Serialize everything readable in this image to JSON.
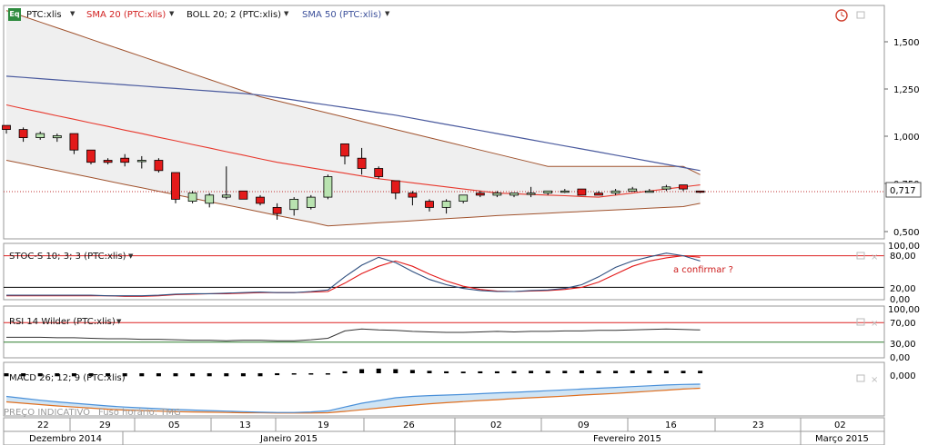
{
  "header": {
    "eq_badge": "Eq",
    "symbol_label": "PTC:xlis",
    "sma20_label": "SMA 20 (PTC:xlis)",
    "boll_label": "BOLL 20; 2 (PTC:xlis)",
    "sma50_label": "SMA 50 (PTC:xlis)"
  },
  "price_axis": {
    "ticks": [
      "1,500",
      "1,250",
      "1,000",
      "0,750",
      "0,500"
    ],
    "last_price": "0,717"
  },
  "stoch": {
    "label": "STOC-S 10; 3; 3 (PTC:xlis)",
    "ticks": [
      "100,00",
      "80,00",
      "20,00",
      "0,00"
    ],
    "annotation": "a confirmar ?"
  },
  "rsi": {
    "label": "RSI 14 Wilder (PTC:xlis)",
    "ticks": [
      "100,00",
      "70,00",
      "30,00",
      "0,00"
    ]
  },
  "macd": {
    "label": "MACD 26; 12; 9 (PTC:xlis)",
    "ticks": [
      "0,000"
    ]
  },
  "footer": {
    "indicative": "PREÇO INDICATIVO",
    "timezone": "Fuso horário: TMG"
  },
  "dates": {
    "days": [
      "22",
      "29",
      "05",
      "13",
      "19",
      "26",
      "02",
      "09",
      "16",
      "23",
      "02"
    ],
    "months": [
      "Dezembro 2014",
      "Janeiro 2015",
      "Fevereiro 2015",
      "Março 2015"
    ]
  },
  "colors": {
    "up": "#b9e3b0",
    "down": "#e31a1a",
    "sma20": "#e8382d",
    "sma50": "#4a5a9e",
    "boll": "#a0522d",
    "stoch_k": "#2f4f7f",
    "stoch_d": "#e31a1a",
    "rsi": "#333333",
    "macd_line": "#4a90d9",
    "macd_signal": "#e07020"
  },
  "chart_data": {
    "type": "candlestick",
    "y_range": [
      0.5,
      1.625
    ],
    "candles": [
      {
        "o": 1.04,
        "h": 1.04,
        "l": 1.0,
        "c": 1.02
      },
      {
        "o": 1.02,
        "h": 1.03,
        "l": 0.96,
        "c": 0.98
      },
      {
        "o": 0.98,
        "h": 1.01,
        "l": 0.97,
        "c": 1.0
      },
      {
        "o": 0.98,
        "h": 1.0,
        "l": 0.96,
        "c": 0.99
      },
      {
        "o": 1.0,
        "h": 1.0,
        "l": 0.9,
        "c": 0.92
      },
      {
        "o": 0.92,
        "h": 0.92,
        "l": 0.85,
        "c": 0.86
      },
      {
        "o": 0.87,
        "h": 0.88,
        "l": 0.85,
        "c": 0.86
      },
      {
        "o": 0.88,
        "h": 0.9,
        "l": 0.84,
        "c": 0.86
      },
      {
        "o": 0.87,
        "h": 0.89,
        "l": 0.83,
        "c": 0.87
      },
      {
        "o": 0.87,
        "h": 0.88,
        "l": 0.81,
        "c": 0.82
      },
      {
        "o": 0.81,
        "h": 0.81,
        "l": 0.66,
        "c": 0.68
      },
      {
        "o": 0.67,
        "h": 0.72,
        "l": 0.66,
        "c": 0.71
      },
      {
        "o": 0.66,
        "h": 0.71,
        "l": 0.64,
        "c": 0.7
      },
      {
        "o": 0.69,
        "h": 0.84,
        "l": 0.68,
        "c": 0.7
      },
      {
        "o": 0.72,
        "h": 0.72,
        "l": 0.69,
        "c": 0.68
      },
      {
        "o": 0.69,
        "h": 0.7,
        "l": 0.65,
        "c": 0.66
      },
      {
        "o": 0.64,
        "h": 0.66,
        "l": 0.58,
        "c": 0.61
      },
      {
        "o": 0.63,
        "h": 0.69,
        "l": 0.6,
        "c": 0.68
      },
      {
        "o": 0.64,
        "h": 0.7,
        "l": 0.63,
        "c": 0.69
      },
      {
        "o": 0.69,
        "h": 0.8,
        "l": 0.68,
        "c": 0.79
      },
      {
        "o": 0.95,
        "h": 0.95,
        "l": 0.85,
        "c": 0.89
      },
      {
        "o": 0.88,
        "h": 0.93,
        "l": 0.8,
        "c": 0.83
      },
      {
        "o": 0.83,
        "h": 0.84,
        "l": 0.78,
        "c": 0.79
      },
      {
        "o": 0.77,
        "h": 0.77,
        "l": 0.68,
        "c": 0.71
      },
      {
        "o": 0.71,
        "h": 0.72,
        "l": 0.65,
        "c": 0.69
      },
      {
        "o": 0.67,
        "h": 0.68,
        "l": 0.62,
        "c": 0.64
      },
      {
        "o": 0.64,
        "h": 0.68,
        "l": 0.61,
        "c": 0.67
      },
      {
        "o": 0.67,
        "h": 0.7,
        "l": 0.66,
        "c": 0.7
      },
      {
        "o": 0.71,
        "h": 0.72,
        "l": 0.69,
        "c": 0.7
      },
      {
        "o": 0.7,
        "h": 0.72,
        "l": 0.69,
        "c": 0.71
      },
      {
        "o": 0.7,
        "h": 0.71,
        "l": 0.69,
        "c": 0.71
      },
      {
        "o": 0.71,
        "h": 0.74,
        "l": 0.69,
        "c": 0.71
      },
      {
        "o": 0.71,
        "h": 0.72,
        "l": 0.7,
        "c": 0.72
      },
      {
        "o": 0.72,
        "h": 0.73,
        "l": 0.71,
        "c": 0.72
      },
      {
        "o": 0.73,
        "h": 0.73,
        "l": 0.7,
        "c": 0.7
      },
      {
        "o": 0.71,
        "h": 0.72,
        "l": 0.7,
        "c": 0.7
      },
      {
        "o": 0.71,
        "h": 0.73,
        "l": 0.7,
        "c": 0.72
      },
      {
        "o": 0.72,
        "h": 0.74,
        "l": 0.72,
        "c": 0.73
      },
      {
        "o": 0.72,
        "h": 0.73,
        "l": 0.72,
        "c": 0.72
      },
      {
        "o": 0.73,
        "h": 0.75,
        "l": 0.72,
        "c": 0.74
      },
      {
        "o": 0.75,
        "h": 0.75,
        "l": 0.72,
        "c": 0.73
      },
      {
        "o": 0.72,
        "h": 0.72,
        "l": 0.71,
        "c": 0.717
      }
    ],
    "sma20": [
      1.14,
      1.122,
      1.105,
      1.087,
      1.07,
      1.052,
      1.035,
      1.017,
      1.0,
      0.982,
      0.965,
      0.947,
      0.93,
      0.912,
      0.895,
      0.877,
      0.86,
      0.847,
      0.833,
      0.82,
      0.807,
      0.793,
      0.78,
      0.77,
      0.76,
      0.75,
      0.74,
      0.73,
      0.72,
      0.71,
      0.707,
      0.703,
      0.7,
      0.697,
      0.693,
      0.69,
      0.7,
      0.71,
      0.72,
      0.73,
      0.74,
      0.75
    ],
    "sma50": [
      1.28,
      1.274,
      1.268,
      1.262,
      1.256,
      1.25,
      1.244,
      1.238,
      1.232,
      1.226,
      1.22,
      1.214,
      1.208,
      1.202,
      1.196,
      1.188,
      1.176,
      1.164,
      1.151,
      1.139,
      1.127,
      1.115,
      1.102,
      1.09,
      1.075,
      1.06,
      1.045,
      1.03,
      1.015,
      1.0,
      0.985,
      0.97,
      0.955,
      0.94,
      0.925,
      0.91,
      0.895,
      0.88,
      0.865,
      0.85,
      0.835,
      0.82
    ],
    "boll_upper": [
      1.6,
      1.572,
      1.544,
      1.516,
      1.488,
      1.46,
      1.432,
      1.404,
      1.376,
      1.348,
      1.32,
      1.292,
      1.264,
      1.236,
      1.208,
      1.18,
      1.16,
      1.14,
      1.12,
      1.1,
      1.08,
      1.06,
      1.04,
      1.02,
      1.0,
      0.98,
      0.96,
      0.94,
      0.92,
      0.9,
      0.88,
      0.86,
      0.84,
      0.84,
      0.84,
      0.84,
      0.84,
      0.84,
      0.84,
      0.84,
      0.84,
      0.8
    ],
    "boll_lower": [
      0.87,
      0.853,
      0.836,
      0.82,
      0.803,
      0.786,
      0.769,
      0.752,
      0.736,
      0.719,
      0.702,
      0.685,
      0.668,
      0.652,
      0.635,
      0.618,
      0.601,
      0.584,
      0.568,
      0.55,
      0.555,
      0.56,
      0.565,
      0.57,
      0.575,
      0.58,
      0.585,
      0.59,
      0.595,
      0.6,
      0.604,
      0.608,
      0.612,
      0.616,
      0.62,
      0.624,
      0.628,
      0.632,
      0.636,
      0.64,
      0.644,
      0.66
    ],
    "stoch": {
      "k": [
        5,
        5,
        5,
        5,
        5,
        5,
        4,
        4,
        4,
        5,
        7,
        8,
        8,
        9,
        10,
        11,
        10,
        10,
        12,
        15,
        40,
        62,
        77,
        67,
        50,
        35,
        25,
        18,
        14,
        12,
        12,
        14,
        15,
        18,
        25,
        40,
        58,
        70,
        78,
        85,
        80,
        70
      ],
      "d": [
        4,
        4,
        4,
        4,
        4,
        4,
        4,
        3,
        3,
        4,
        6,
        7,
        8,
        8,
        9,
        10,
        10,
        10,
        11,
        12,
        28,
        46,
        60,
        70,
        60,
        45,
        32,
        22,
        16,
        13,
        12,
        13,
        14,
        16,
        20,
        30,
        45,
        60,
        70,
        76,
        80,
        77
      ]
    },
    "rsi": [
      40,
      40,
      40,
      39,
      39,
      38,
      37,
      37,
      36,
      36,
      35,
      34,
      34,
      33,
      34,
      34,
      33,
      33,
      35,
      38,
      53,
      57,
      55,
      54,
      52,
      51,
      50,
      50,
      51,
      52,
      51,
      52,
      52,
      53,
      53,
      54,
      54,
      55,
      56,
      57,
      56,
      55
    ],
    "macd": {
      "histogram": [
        -0.011,
        -0.011,
        -0.011,
        -0.011,
        -0.011,
        -0.011,
        -0.011,
        -0.011,
        -0.011,
        -0.011,
        -0.011,
        -0.011,
        -0.011,
        -0.011,
        -0.011,
        -0.011,
        -0.007,
        -0.005,
        -0.003,
        -0.001,
        0.007,
        0.015,
        0.017,
        0.015,
        0.012,
        0.009,
        0.007,
        0.006,
        0.007,
        0.007,
        0.008,
        0.009,
        0.009,
        0.009,
        0.01,
        0.009,
        0.009,
        0.01,
        0.01,
        0.009,
        0.009,
        0.009
      ],
      "line": [
        -0.085,
        -0.092,
        -0.099,
        -0.105,
        -0.11,
        -0.115,
        -0.12,
        -0.124,
        -0.127,
        -0.13,
        -0.133,
        -0.135,
        -0.137,
        -0.139,
        -0.141,
        -0.143,
        -0.144,
        -0.144,
        -0.142,
        -0.138,
        -0.124,
        -0.11,
        -0.1,
        -0.09,
        -0.085,
        -0.082,
        -0.08,
        -0.078,
        -0.075,
        -0.072,
        -0.07,
        -0.067,
        -0.064,
        -0.061,
        -0.058,
        -0.055,
        -0.052,
        -0.049,
        -0.046,
        -0.043,
        -0.041,
        -0.04
      ],
      "signal": [
        -0.105,
        -0.11,
        -0.115,
        -0.12,
        -0.124,
        -0.128,
        -0.132,
        -0.135,
        -0.137,
        -0.139,
        -0.141,
        -0.142,
        -0.143,
        -0.144,
        -0.145,
        -0.145,
        -0.146,
        -0.146,
        -0.146,
        -0.145,
        -0.14,
        -0.134,
        -0.128,
        -0.122,
        -0.117,
        -0.112,
        -0.108,
        -0.104,
        -0.1,
        -0.097,
        -0.093,
        -0.09,
        -0.087,
        -0.084,
        -0.08,
        -0.077,
        -0.074,
        -0.07,
        -0.066,
        -0.062,
        -0.058,
        -0.055
      ]
    }
  }
}
